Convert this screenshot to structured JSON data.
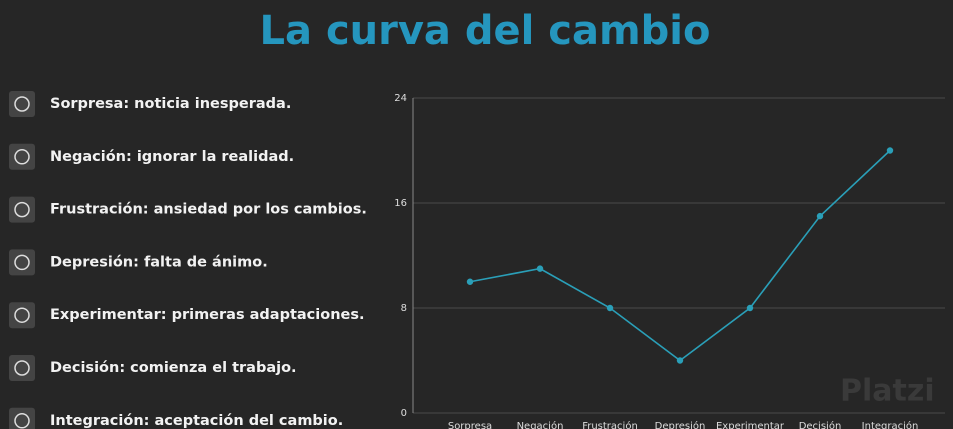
{
  "header": {
    "title": "La curva del cambio"
  },
  "list": [
    "Sorpresa: noticia inesperada.",
    "Negación: ignorar la realidad.",
    "Frustración: ansiedad por los cambios.",
    "Depresión: falta de ánimo.",
    "Experimentar: primeras adaptaciones.",
    "Decisión: comienza el trabajo.",
    "Integración: aceptación del cambio."
  ],
  "watermark": "Platzi",
  "chart_data": {
    "type": "line",
    "categories": [
      "Sorpresa",
      "Negación",
      "Frustración",
      "Depresión",
      "Experimentar",
      "Decisión",
      "Integración"
    ],
    "values": [
      10,
      11,
      8,
      4,
      8,
      15,
      20
    ],
    "color": "#2a9fb8",
    "ylim": [
      0,
      24
    ],
    "yticks": [
      0,
      8,
      16,
      24
    ],
    "grid": true
  }
}
